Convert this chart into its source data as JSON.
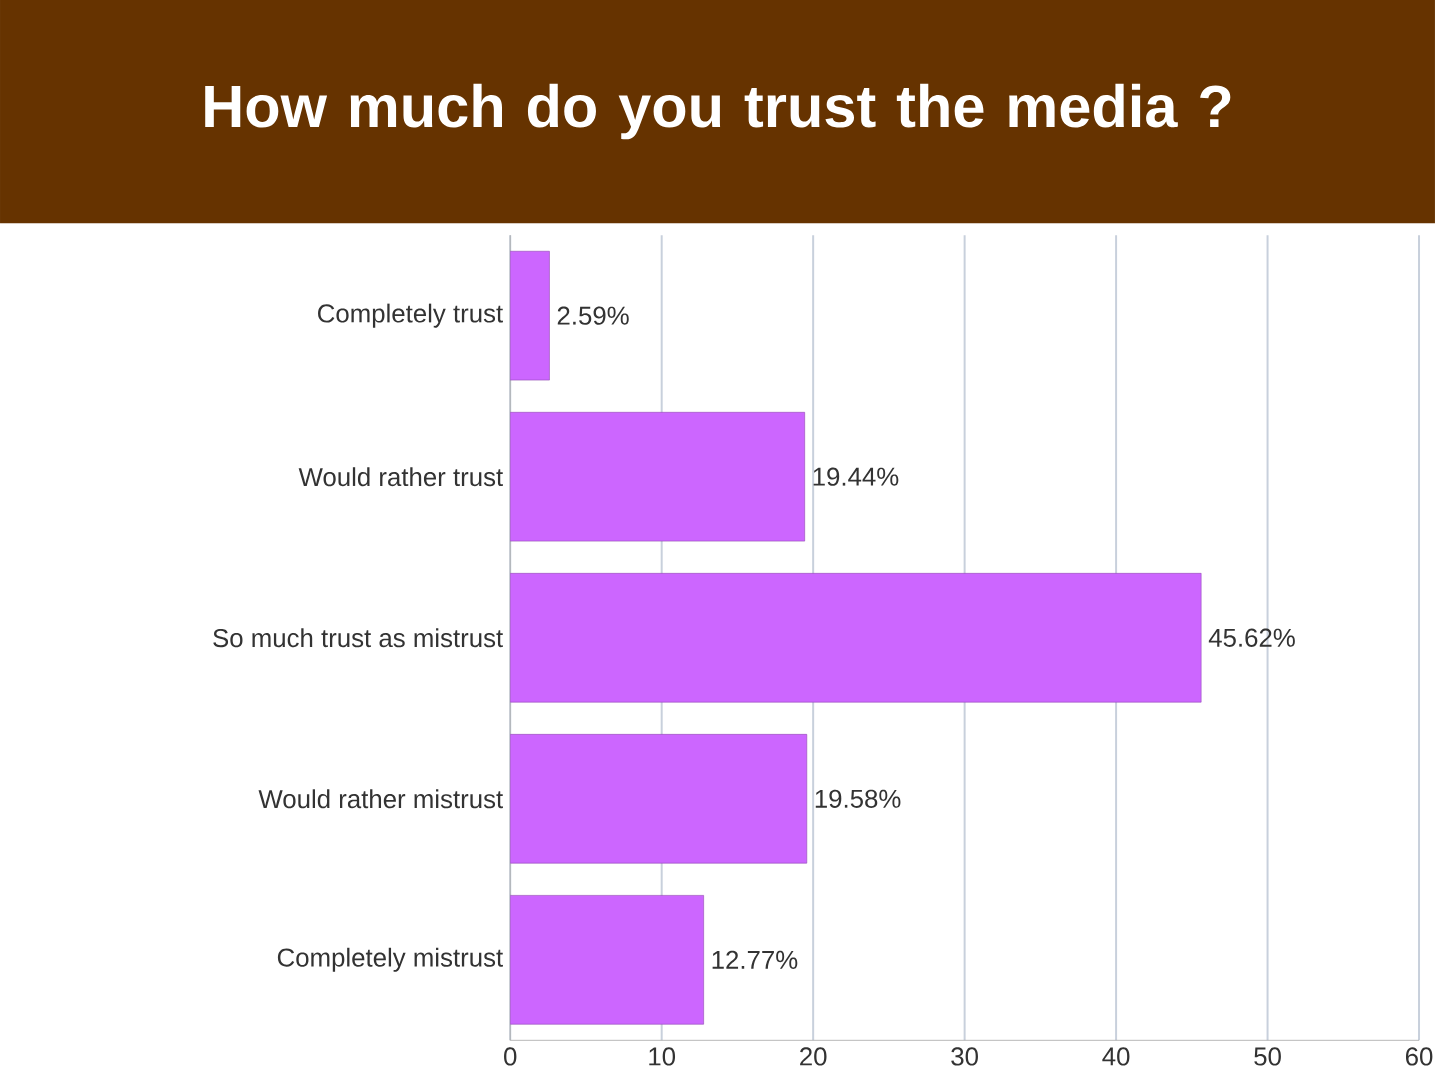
{
  "chart_data": {
    "type": "bar",
    "orientation": "horizontal",
    "title": "How much do you trust the media ?",
    "categories": [
      "Completely trust",
      "Would rather trust",
      "So much trust as mistrust",
      "Would rather mistrust",
      "Completely mistrust"
    ],
    "values": [
      2.59,
      19.44,
      45.62,
      19.58,
      12.77
    ],
    "value_labels": [
      "2.59%",
      "19.44%",
      "45.62%",
      "19.58%",
      "12.77%"
    ],
    "color": "#cc66ff",
    "xlim": [
      0,
      60
    ],
    "xticks": [
      0,
      10,
      20,
      30,
      40,
      50,
      60
    ],
    "grid": "x"
  }
}
